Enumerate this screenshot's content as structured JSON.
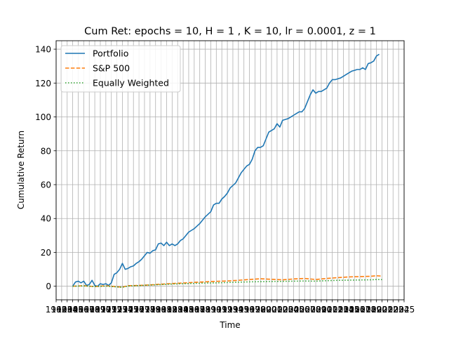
{
  "chart_data": {
    "type": "line",
    "title": "Cum Ret: epochs = 10, H = 1 , K = 10, lr = 0.0001, z = 1",
    "xlabel": "Time",
    "ylabel": "Cumulative Return",
    "xlim": [
      1962,
      2025
    ],
    "ylim": [
      -8,
      145
    ],
    "yticks": [
      0,
      20,
      40,
      60,
      80,
      100,
      120,
      140
    ],
    "xtick_years": [
      1962,
      1963,
      1964,
      1965,
      1966,
      1967,
      1968,
      1969,
      1970,
      1971,
      1972,
      1973,
      1974,
      1975,
      1976,
      1977,
      1978,
      1979,
      1980,
      1981,
      1982,
      1983,
      1984,
      1985,
      1986,
      1987,
      1988,
      1989,
      1990,
      1991,
      1992,
      1993,
      1994,
      1995,
      1996,
      1997,
      1998,
      1999,
      2000,
      2001,
      2002,
      2003,
      2004,
      2005,
      2006,
      2007,
      2008,
      2009,
      2010,
      2011,
      2012,
      2013,
      2014,
      2015,
      2016,
      2017,
      2018,
      2019,
      2020,
      2021,
      2022,
      2023,
      2024,
      2025
    ],
    "grid": true,
    "legend_position": "top-left",
    "series": [
      {
        "name": "Portfolio",
        "color": "#1f77b4",
        "style": "solid",
        "points": [
          [
            1965.0,
            0
          ],
          [
            1965.5,
            2.5
          ],
          [
            1966.0,
            3
          ],
          [
            1966.5,
            2
          ],
          [
            1967.0,
            3
          ],
          [
            1967.5,
            0.5
          ],
          [
            1968.0,
            1
          ],
          [
            1968.5,
            3.5
          ],
          [
            1969.0,
            0.5
          ],
          [
            1969.5,
            0
          ],
          [
            1970.0,
            1.5
          ],
          [
            1970.5,
            1
          ],
          [
            1971.0,
            1.5
          ],
          [
            1971.5,
            0.5
          ],
          [
            1972.0,
            2
          ],
          [
            1972.5,
            7
          ],
          [
            1973.0,
            8
          ],
          [
            1973.5,
            10
          ],
          [
            1974.0,
            13.5
          ],
          [
            1974.5,
            10
          ],
          [
            1975.0,
            10.5
          ],
          [
            1975.5,
            11.5
          ],
          [
            1976.0,
            12
          ],
          [
            1976.5,
            13.5
          ],
          [
            1977.0,
            14.5
          ],
          [
            1977.5,
            16
          ],
          [
            1978.0,
            18
          ],
          [
            1978.5,
            20
          ],
          [
            1979.0,
            19.5
          ],
          [
            1979.5,
            21
          ],
          [
            1980.0,
            21.5
          ],
          [
            1980.5,
            25
          ],
          [
            1981.0,
            25.5
          ],
          [
            1981.5,
            24
          ],
          [
            1982.0,
            26
          ],
          [
            1982.5,
            24
          ],
          [
            1983.0,
            25
          ],
          [
            1983.5,
            24
          ],
          [
            1984.0,
            25
          ],
          [
            1984.5,
            27
          ],
          [
            1985.0,
            28
          ],
          [
            1985.5,
            30
          ],
          [
            1986.0,
            32
          ],
          [
            1986.5,
            33
          ],
          [
            1987.0,
            34
          ],
          [
            1987.5,
            35.5
          ],
          [
            1988.0,
            37
          ],
          [
            1988.5,
            39
          ],
          [
            1989.0,
            41
          ],
          [
            1989.5,
            42.5
          ],
          [
            1990.0,
            44
          ],
          [
            1990.5,
            48
          ],
          [
            1991.0,
            49
          ],
          [
            1991.5,
            49
          ],
          [
            1992.0,
            51.5
          ],
          [
            1992.5,
            53
          ],
          [
            1993.0,
            55
          ],
          [
            1993.5,
            58
          ],
          [
            1994.0,
            59.5
          ],
          [
            1994.5,
            61
          ],
          [
            1995.0,
            64
          ],
          [
            1995.5,
            67
          ],
          [
            1996.0,
            69
          ],
          [
            1996.5,
            71
          ],
          [
            1997.0,
            72
          ],
          [
            1997.5,
            75
          ],
          [
            1998.0,
            80
          ],
          [
            1998.5,
            82
          ],
          [
            1999.0,
            82
          ],
          [
            1999.5,
            83
          ],
          [
            2000.0,
            87
          ],
          [
            2000.5,
            91
          ],
          [
            2001.0,
            92
          ],
          [
            2001.5,
            93
          ],
          [
            2002.0,
            96
          ],
          [
            2002.5,
            94
          ],
          [
            2003.0,
            98
          ],
          [
            2003.5,
            98.5
          ],
          [
            2004.0,
            99
          ],
          [
            2004.5,
            100
          ],
          [
            2005.0,
            101
          ],
          [
            2005.5,
            102
          ],
          [
            2006.0,
            103
          ],
          [
            2006.5,
            103
          ],
          [
            2007.0,
            105
          ],
          [
            2007.5,
            109
          ],
          [
            2008.0,
            113
          ],
          [
            2008.5,
            116
          ],
          [
            2009.0,
            114
          ],
          [
            2009.5,
            115
          ],
          [
            2010.0,
            115
          ],
          [
            2010.5,
            116
          ],
          [
            2011.0,
            117
          ],
          [
            2011.5,
            120
          ],
          [
            2012.0,
            122
          ],
          [
            2012.5,
            122
          ],
          [
            2013.0,
            122.5
          ],
          [
            2013.5,
            123
          ],
          [
            2014.0,
            124
          ],
          [
            2014.5,
            125
          ],
          [
            2015.0,
            126
          ],
          [
            2015.5,
            127
          ],
          [
            2016.0,
            127.5
          ],
          [
            2016.5,
            128
          ],
          [
            2017.0,
            128
          ],
          [
            2017.5,
            129
          ],
          [
            2018.0,
            128
          ],
          [
            2018.5,
            131.5
          ],
          [
            2019.0,
            132
          ],
          [
            2019.5,
            133
          ],
          [
            2020.0,
            136
          ],
          [
            2020.5,
            137
          ]
        ]
      },
      {
        "name": "S&P 500",
        "color": "#ff7f0e",
        "style": "dashed",
        "points": [
          [
            1965.0,
            0
          ],
          [
            1967.0,
            0.3
          ],
          [
            1969.0,
            -0.2
          ],
          [
            1971.0,
            0.3
          ],
          [
            1973.0,
            -0.3
          ],
          [
            1974.0,
            -0.5
          ],
          [
            1975.0,
            0.3
          ],
          [
            1977.0,
            0.5
          ],
          [
            1979.0,
            0.8
          ],
          [
            1981.0,
            1.2
          ],
          [
            1983.0,
            1.6
          ],
          [
            1985.0,
            1.9
          ],
          [
            1987.0,
            2.3
          ],
          [
            1989.0,
            2.6
          ],
          [
            1991.0,
            2.9
          ],
          [
            1993.0,
            3.1
          ],
          [
            1995.0,
            3.5
          ],
          [
            1997.0,
            4
          ],
          [
            1999.0,
            4.4
          ],
          [
            2001.0,
            4.1
          ],
          [
            2003.0,
            3.8
          ],
          [
            2005.0,
            4.3
          ],
          [
            2007.0,
            4.6
          ],
          [
            2009.0,
            4.0
          ],
          [
            2011.0,
            4.6
          ],
          [
            2013.0,
            5.1
          ],
          [
            2015.0,
            5.5
          ],
          [
            2017.0,
            5.7
          ],
          [
            2019.0,
            5.9
          ],
          [
            2020.0,
            6.2
          ],
          [
            2021.0,
            6.0
          ]
        ]
      },
      {
        "name": "Equally Weighted",
        "color": "#2ca02c",
        "style": "dotted",
        "points": [
          [
            1965.0,
            0
          ],
          [
            1967.0,
            0.2
          ],
          [
            1969.0,
            -0.2
          ],
          [
            1971.0,
            0.1
          ],
          [
            1973.0,
            -0.4
          ],
          [
            1974.0,
            -0.6
          ],
          [
            1975.0,
            0.1
          ],
          [
            1977.0,
            0.4
          ],
          [
            1979.0,
            0.7
          ],
          [
            1981.0,
            1.0
          ],
          [
            1983.0,
            1.3
          ],
          [
            1985.0,
            1.5
          ],
          [
            1987.0,
            1.7
          ],
          [
            1989.0,
            1.9
          ],
          [
            1991.0,
            2.0
          ],
          [
            1993.0,
            2.2
          ],
          [
            1995.0,
            2.4
          ],
          [
            1997.0,
            2.6
          ],
          [
            1999.0,
            2.7
          ],
          [
            2001.0,
            2.8
          ],
          [
            2003.0,
            2.9
          ],
          [
            2005.0,
            3.0
          ],
          [
            2007.0,
            3.1
          ],
          [
            2009.0,
            3.0
          ],
          [
            2011.0,
            3.3
          ],
          [
            2013.0,
            3.5
          ],
          [
            2015.0,
            3.6
          ],
          [
            2017.0,
            3.7
          ],
          [
            2019.0,
            3.8
          ],
          [
            2020.0,
            4.0
          ],
          [
            2021.0,
            3.9
          ]
        ]
      }
    ]
  }
}
